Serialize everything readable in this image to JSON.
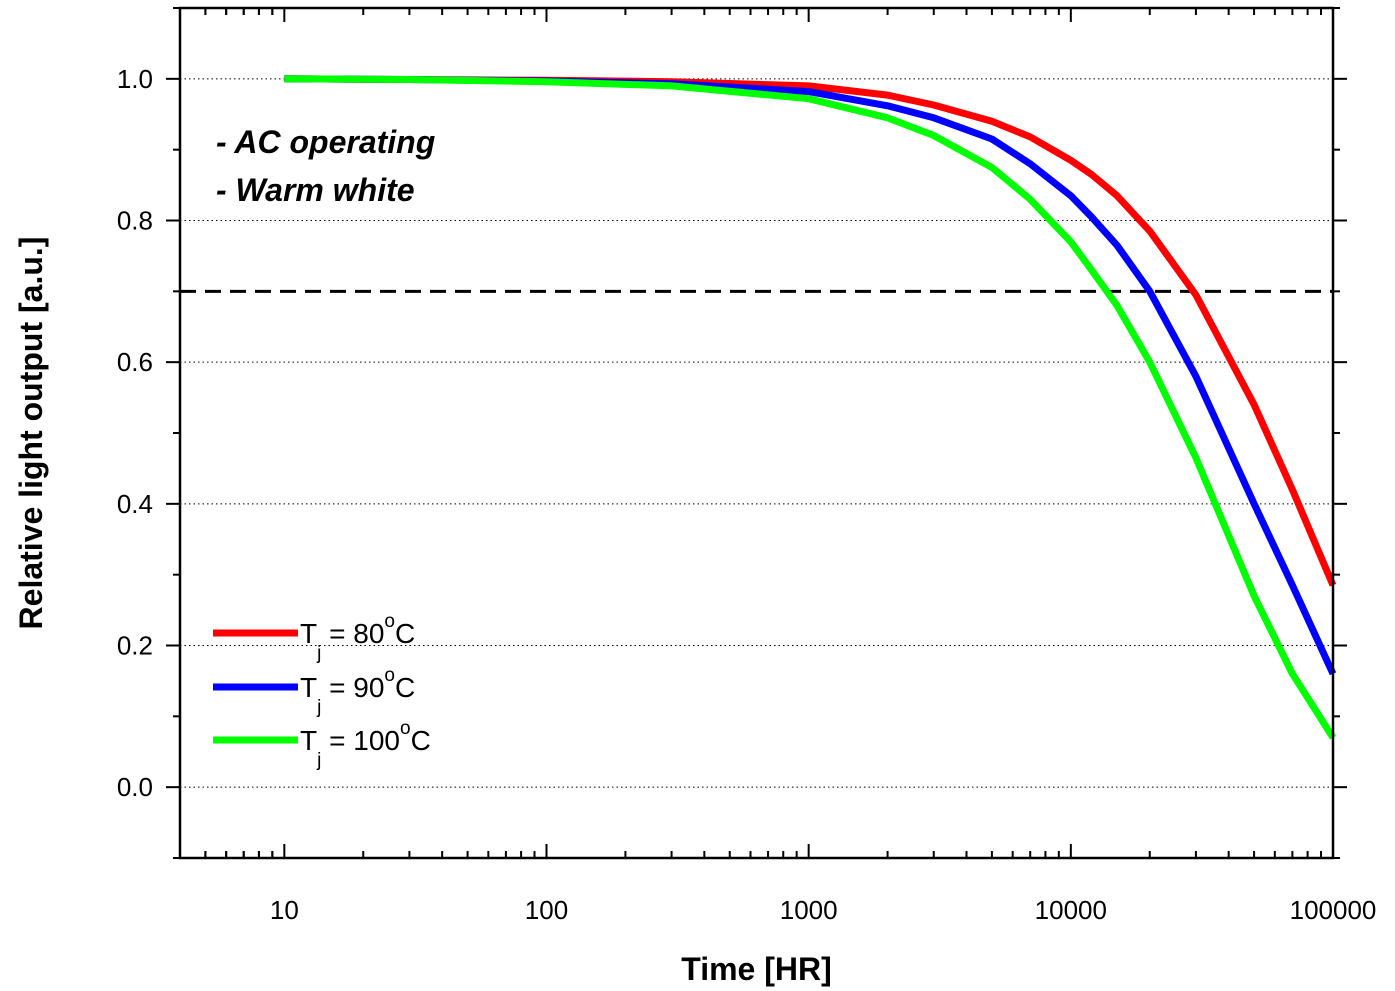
{
  "chart_data": {
    "type": "line",
    "xlabel": "Time [HR]",
    "ylabel": "Relative light output [a.u.]",
    "xscale": "log",
    "xlim": [
      4,
      100000
    ],
    "ylim": [
      -0.1,
      1.1
    ],
    "x_ticks": [
      10,
      100,
      1000,
      10000,
      100000
    ],
    "x_tick_labels": [
      "10",
      "100",
      "1000",
      "10000",
      "100000"
    ],
    "y_ticks": [
      0.0,
      0.2,
      0.4,
      0.6,
      0.8,
      1.0
    ],
    "y_tick_labels": [
      "0.0",
      "0.2",
      "0.4",
      "0.6",
      "0.8",
      "1.0"
    ],
    "grid": "horizontal dotted",
    "reference_line": {
      "y": 0.7,
      "style": "dashed"
    },
    "annotations": [
      "- AC operating",
      "- Warm white"
    ],
    "legend_placement": "bottom-left",
    "series": [
      {
        "name": "Tj = 80oC",
        "label_main": "T",
        "label_sub": "j",
        "label_eq": " = 80",
        "label_sup": "o",
        "label_unit": "C",
        "color": "#ff0000",
        "x": [
          10,
          30,
          100,
          300,
          1000,
          2000,
          3000,
          5000,
          7000,
          10000,
          12000,
          15000,
          20000,
          30000,
          50000,
          70000,
          100000
        ],
        "y": [
          1.0,
          0.999,
          0.998,
          0.996,
          0.99,
          0.977,
          0.963,
          0.94,
          0.918,
          0.885,
          0.865,
          0.835,
          0.785,
          0.695,
          0.54,
          0.42,
          0.285
        ]
      },
      {
        "name": "Tj = 90oC",
        "label_main": "T",
        "label_sub": "j",
        "label_eq": " = 90",
        "label_sup": "o",
        "label_unit": "C",
        "color": "#0000ff",
        "x": [
          10,
          30,
          100,
          300,
          1000,
          2000,
          3000,
          5000,
          7000,
          10000,
          12000,
          15000,
          20000,
          30000,
          50000,
          70000,
          100000
        ],
        "y": [
          1.0,
          0.999,
          0.997,
          0.993,
          0.982,
          0.962,
          0.945,
          0.915,
          0.88,
          0.835,
          0.805,
          0.765,
          0.7,
          0.58,
          0.4,
          0.285,
          0.16
        ]
      },
      {
        "name": "Tj = 100oC",
        "label_main": "T",
        "label_sub": "j",
        "label_eq": " = 100",
        "label_sup": "o",
        "label_unit": "C",
        "color": "#00ff00",
        "x": [
          10,
          30,
          100,
          300,
          1000,
          2000,
          3000,
          5000,
          7000,
          10000,
          12000,
          15000,
          20000,
          30000,
          50000,
          70000,
          100000
        ],
        "y": [
          1.0,
          0.999,
          0.996,
          0.99,
          0.972,
          0.945,
          0.92,
          0.875,
          0.83,
          0.77,
          0.73,
          0.68,
          0.6,
          0.465,
          0.27,
          0.16,
          0.07
        ]
      }
    ]
  }
}
